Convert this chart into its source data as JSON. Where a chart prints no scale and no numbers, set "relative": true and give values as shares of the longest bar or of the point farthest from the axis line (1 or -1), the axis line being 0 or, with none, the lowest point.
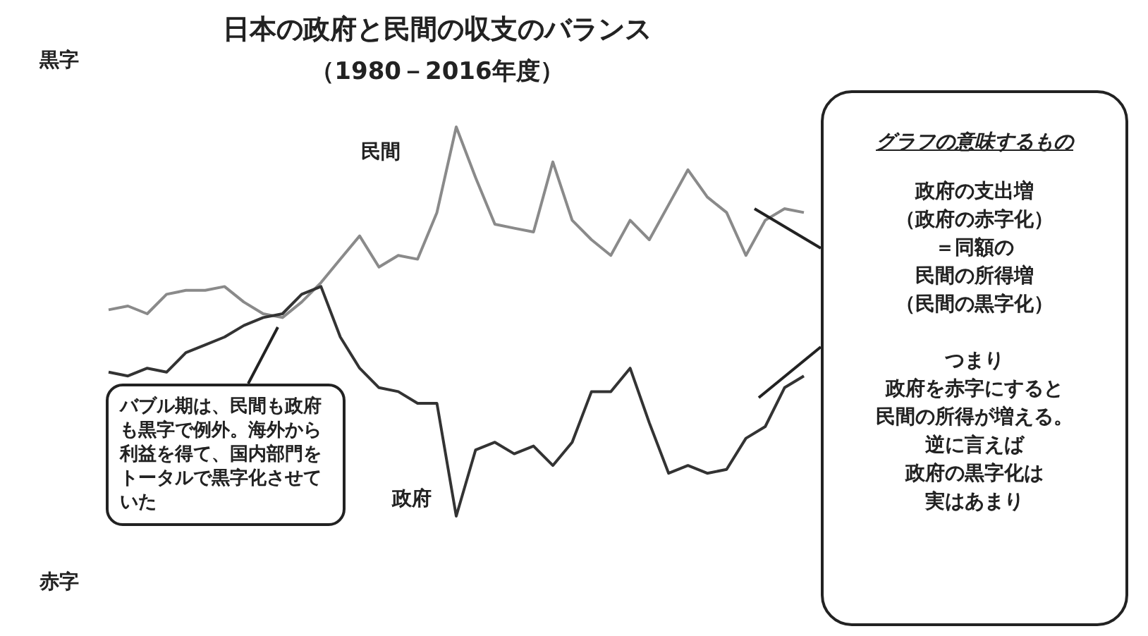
{
  "chart_data": {
    "type": "line",
    "relative": true,
    "title": "日本の政府と民間の収支のバランス",
    "subtitle": "（1980－2016年度）",
    "categories": [
      null,
      null,
      null,
      null,
      null,
      null,
      null,
      null,
      null,
      null,
      null,
      null,
      null,
      null,
      null,
      null,
      null,
      null,
      null,
      null,
      null,
      null,
      null,
      null,
      null,
      null,
      null,
      null,
      null,
      null,
      null,
      null,
      null,
      null,
      null,
      null,
      null
    ],
    "series": [
      {
        "name": "民間",
        "color": "#8a8a8a",
        "values": [
          0.53,
          0.54,
          0.52,
          0.57,
          0.58,
          0.58,
          0.59,
          0.55,
          0.52,
          0.51,
          0.55,
          0.6,
          0.66,
          0.72,
          0.64,
          0.67,
          0.66,
          0.78,
          1,
          0.87,
          0.75,
          0.74,
          0.73,
          0.91,
          0.76,
          0.71,
          0.67,
          0.76,
          0.71,
          0.8,
          0.89,
          0.82,
          0.78,
          0.67,
          0.76,
          0.79,
          0.78
        ]
      },
      {
        "name": "政府",
        "color": "#333333",
        "values": [
          0.37,
          0.36,
          0.38,
          0.37,
          0.42,
          0.44,
          0.46,
          0.49,
          0.51,
          0.52,
          0.57,
          0.59,
          0.46,
          0.38,
          0.33,
          0.32,
          0.29,
          0.29,
          0,
          0.17,
          0.19,
          0.16,
          0.18,
          0.13,
          0.19,
          0.32,
          0.32,
          0.38,
          0.24,
          0.11,
          0.13,
          0.11,
          0.12,
          0.2,
          0.23,
          0.33,
          0.36
        ]
      }
    ],
    "annotations": [
      "黒字",
      "赤字",
      "バブル期は、民間も政府も黒字で例外。海外から利益を得て、国内部門をトータルで黒字化させていた",
      "グラフの意味するもの",
      "政府の支出増",
      "（政府の赤字化）",
      "＝同額の",
      "民間の所得増",
      "（民間の黒字化）",
      "つまり",
      "政府を赤字にすると",
      "民間の所得が増える。",
      "逆に言えば",
      "政府の黒字化は",
      "実はあまり"
    ],
    "legend": false
  }
}
